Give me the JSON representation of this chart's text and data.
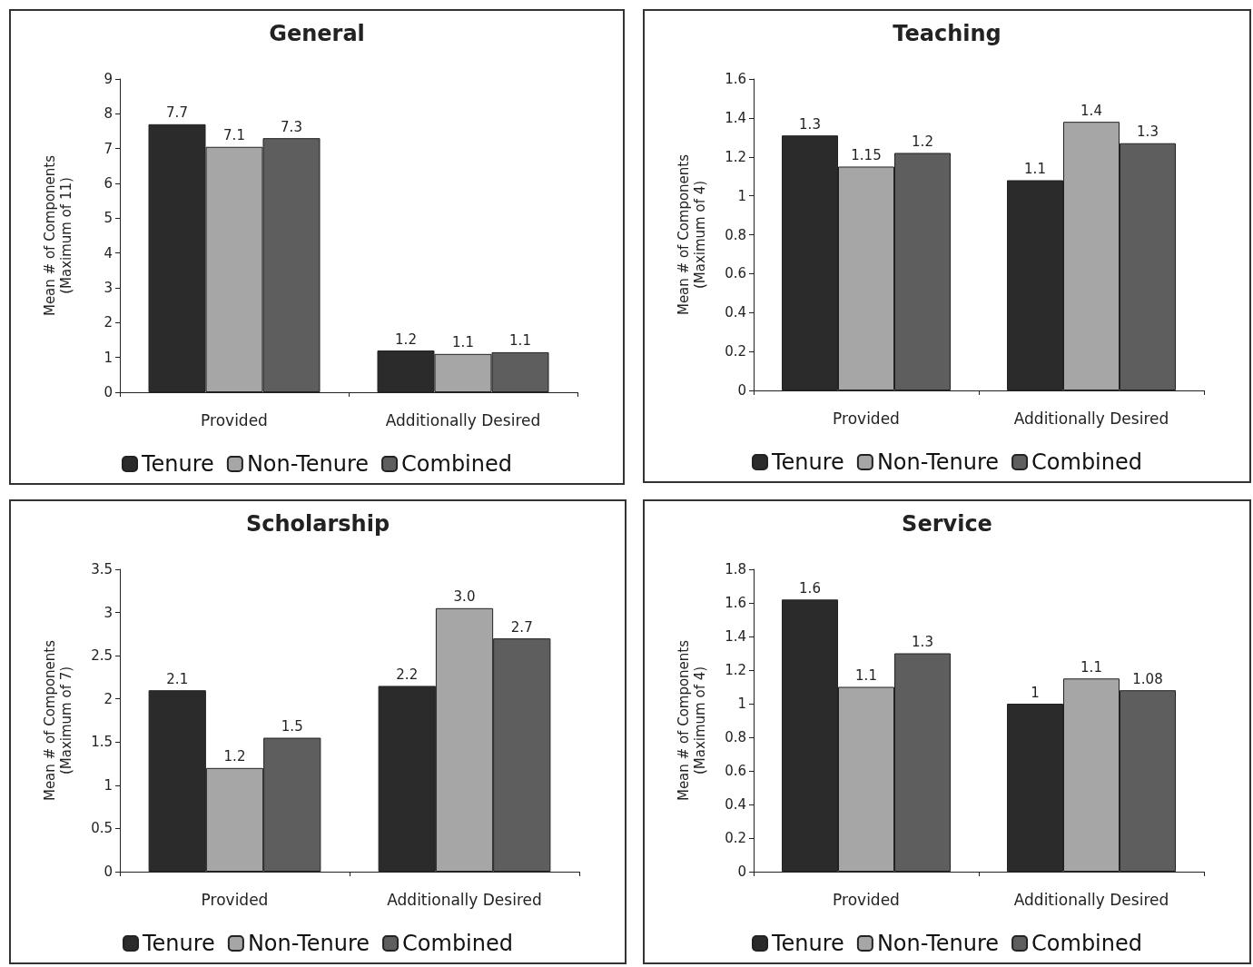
{
  "chart_data": [
    {
      "type": "bar",
      "title": "General",
      "ylabel": "Mean # of Components\n(Maximum of 11)",
      "categories": [
        "Provided",
        "Additionally Desired"
      ],
      "ylim": [
        0,
        9
      ],
      "yticks": [
        0,
        1,
        2,
        3,
        4,
        5,
        6,
        7,
        8,
        9
      ],
      "legend": "bottom",
      "series": [
        {
          "name": "Tenure",
          "color": "#2b2b2b",
          "values": [
            7.7,
            1.2
          ],
          "value_labels": [
            "7.7",
            "1.2"
          ]
        },
        {
          "name": "Non-Tenure",
          "color": "#a6a6a6",
          "values": [
            7.05,
            1.1
          ],
          "value_labels": [
            "7.1",
            "1.1"
          ]
        },
        {
          "name": "Combined",
          "color": "#5e5e5e",
          "values": [
            7.3,
            1.15
          ],
          "value_labels": [
            "7.3",
            "1.1"
          ]
        }
      ]
    },
    {
      "type": "bar",
      "title": "Teaching",
      "ylabel": "Mean # of Components\n(Maximum of 4)",
      "categories": [
        "Provided",
        "Additionally Desired"
      ],
      "ylim": [
        0,
        1.6
      ],
      "yticks": [
        0,
        0.2,
        0.4,
        0.6,
        0.8,
        1,
        1.2,
        1.4,
        1.6
      ],
      "legend": "bottom",
      "series": [
        {
          "name": "Tenure",
          "color": "#2b2b2b",
          "values": [
            1.31,
            1.08
          ],
          "value_labels": [
            "1.3",
            "1.1"
          ]
        },
        {
          "name": "Non-Tenure",
          "color": "#a6a6a6",
          "values": [
            1.15,
            1.38
          ],
          "value_labels": [
            "1.15",
            "1.4"
          ]
        },
        {
          "name": "Combined",
          "color": "#5e5e5e",
          "values": [
            1.22,
            1.27
          ],
          "value_labels": [
            "1.2",
            "1.3"
          ]
        }
      ]
    },
    {
      "type": "bar",
      "title": "Scholarship",
      "ylabel": "Mean # of Components\n(Maximum of 7)",
      "categories": [
        "Provided",
        "Additionally Desired"
      ],
      "ylim": [
        0,
        3.5
      ],
      "yticks": [
        0,
        0.5,
        1,
        1.5,
        2,
        2.5,
        3,
        3.5
      ],
      "legend": "bottom",
      "series": [
        {
          "name": "Tenure",
          "color": "#2b2b2b",
          "values": [
            2.1,
            2.15
          ],
          "value_labels": [
            "2.1",
            "2.2"
          ]
        },
        {
          "name": "Non-Tenure",
          "color": "#a6a6a6",
          "values": [
            1.2,
            3.05
          ],
          "value_labels": [
            "1.2",
            "3.0"
          ]
        },
        {
          "name": "Combined",
          "color": "#5e5e5e",
          "values": [
            1.55,
            2.7
          ],
          "value_labels": [
            "1.5",
            "2.7"
          ]
        }
      ]
    },
    {
      "type": "bar",
      "title": "Service",
      "ylabel": "Mean # of Components\n(Maximum of 4)",
      "categories": [
        "Provided",
        "Additionally Desired"
      ],
      "ylim": [
        0,
        1.8
      ],
      "yticks": [
        0,
        0.2,
        0.4,
        0.6,
        0.8,
        1,
        1.2,
        1.4,
        1.6,
        1.8
      ],
      "legend": "bottom",
      "series": [
        {
          "name": "Tenure",
          "color": "#2b2b2b",
          "values": [
            1.62,
            1.0
          ],
          "value_labels": [
            "1.6",
            "1"
          ]
        },
        {
          "name": "Non-Tenure",
          "color": "#a6a6a6",
          "values": [
            1.1,
            1.15
          ],
          "value_labels": [
            "1.1",
            "1.1"
          ]
        },
        {
          "name": "Combined",
          "color": "#5e5e5e",
          "values": [
            1.3,
            1.08
          ],
          "value_labels": [
            "1.3",
            "1.08"
          ]
        }
      ]
    }
  ]
}
